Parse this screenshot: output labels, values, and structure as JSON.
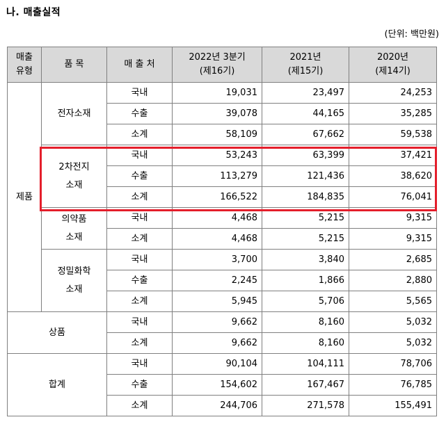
{
  "title": "나. 매출실적",
  "unit": "(단위: 백만원)",
  "headers": {
    "type": [
      "매출",
      "유형"
    ],
    "item": "품 목",
    "customer": "매 출 처",
    "col1": [
      "2022년 3분기",
      "(제16기)"
    ],
    "col2": [
      "2021년",
      "(제15기)"
    ],
    "col3": [
      "2020년",
      "(제14기)"
    ]
  },
  "groups": {
    "product": "제품",
    "goods": "상품",
    "total": "합계"
  },
  "items": {
    "electronic": "전자소재",
    "battery": [
      "2차전지",
      "소재"
    ],
    "pharma": [
      "의약품",
      "소재"
    ],
    "fine_chem": [
      "정밀화학",
      "소재"
    ]
  },
  "rows": [
    {
      "customer": "국내",
      "v": [
        "19,031",
        "23,497",
        "24,253"
      ]
    },
    {
      "customer": "수출",
      "v": [
        "39,078",
        "44,165",
        "35,285"
      ]
    },
    {
      "customer": "소계",
      "v": [
        "58,109",
        "67,662",
        "59,538"
      ]
    },
    {
      "customer": "국내",
      "v": [
        "53,243",
        "63,399",
        "37,421"
      ]
    },
    {
      "customer": "수출",
      "v": [
        "113,279",
        "121,436",
        "38,620"
      ]
    },
    {
      "customer": "소계",
      "v": [
        "166,522",
        "184,835",
        "76,041"
      ]
    },
    {
      "customer": "국내",
      "v": [
        "4,468",
        "5,215",
        "9,315"
      ]
    },
    {
      "customer": "소계",
      "v": [
        "4,468",
        "5,215",
        "9,315"
      ]
    },
    {
      "customer": "국내",
      "v": [
        "3,700",
        "3,840",
        "2,685"
      ]
    },
    {
      "customer": "수출",
      "v": [
        "2,245",
        "1,866",
        "2,880"
      ]
    },
    {
      "customer": "소계",
      "v": [
        "5,945",
        "5,706",
        "5,565"
      ]
    },
    {
      "customer": "국내",
      "v": [
        "9,662",
        "8,160",
        "5,032"
      ]
    },
    {
      "customer": "소계",
      "v": [
        "9,662",
        "8,160",
        "5,032"
      ]
    },
    {
      "customer": "국내",
      "v": [
        "90,104",
        "104,111",
        "78,706"
      ]
    },
    {
      "customer": "수출",
      "v": [
        "154,602",
        "167,467",
        "76,785"
      ]
    },
    {
      "customer": "소계",
      "v": [
        "244,706",
        "271,578",
        "155,491"
      ]
    }
  ],
  "colors": {
    "highlight": "#e41e2b",
    "header_bg": "#d9d9d9"
  }
}
